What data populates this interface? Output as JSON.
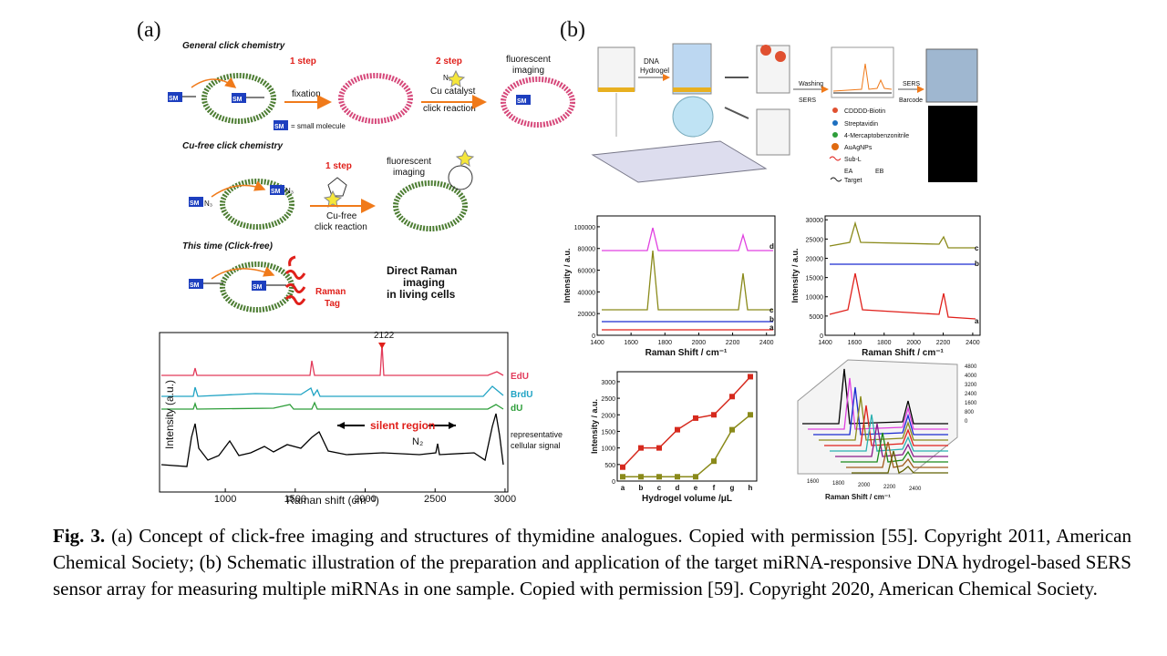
{
  "figure": {
    "panel_a": {
      "label": "(a)",
      "general": {
        "title": "General click chemistry",
        "step1": "1 step",
        "step2": "2 step",
        "reagent": "N₃",
        "catalyst": "Cu catalyst",
        "reaction": "click reaction",
        "fixation": "fixation",
        "imaging": [
          "fluorescent",
          "imaging"
        ],
        "sm": "SM",
        "sm_note": "= small molecule"
      },
      "cufree": {
        "title": "Cu-free click chemistry",
        "step1": "1 step",
        "imaging": [
          "fluorescent",
          "imaging"
        ],
        "reaction": [
          "Cu-free",
          "click reaction"
        ],
        "azide": "N₃"
      },
      "clickfree": {
        "title": "This time (Click-free)",
        "tag": [
          "Raman",
          "Tag"
        ],
        "caption": [
          "Direct Raman",
          "imaging",
          "in living cells"
        ]
      },
      "spectrum": {
        "peak": "2122",
        "series": [
          "EdU",
          "BrdU",
          "dU"
        ],
        "region": "silent region",
        "n2": "N₂",
        "cell": [
          "representative",
          "cellular signal"
        ],
        "ylabel": "Intensity (a.u.)",
        "xlabel": "Raman shift (cm⁻¹)",
        "xlim": [
          530,
          3020
        ],
        "xticks": [
          1000,
          1500,
          2000,
          2500,
          3000
        ]
      }
    },
    "panel_b": {
      "label": "(b)",
      "scheme": {
        "hydrogel": [
          "DNA",
          "Hydrogel"
        ],
        "washing": [
          "Washing",
          "SERS"
        ],
        "barcode": [
          "SERS",
          "Barcode"
        ],
        "legend": [
          "CDDDD-Biotin",
          "Streptavidin",
          "4-Mercaptobenzonitrile",
          "AuAgNPs",
          "Sub-L",
          "EA",
          "EB",
          "Target"
        ]
      },
      "plot1": {
        "ylabel": "Intensity / a.u.",
        "xlabel": "Raman Shift / cm⁻¹",
        "xlim": [
          1400,
          2450
        ],
        "ylim": [
          0,
          110000
        ],
        "xticks": [
          1400,
          1600,
          1800,
          2000,
          2200,
          2400
        ],
        "yticks": [
          0,
          20000,
          40000,
          60000,
          80000,
          100000
        ],
        "curves": [
          "d",
          "c",
          "b",
          "a"
        ]
      },
      "plot2": {
        "ylabel": "Intensity / a.u.",
        "xlabel": "Raman Shift / cm⁻¹",
        "xlim": [
          1400,
          2450
        ],
        "ylim": [
          0,
          31000
        ],
        "xticks": [
          1400,
          1600,
          1800,
          2000,
          2200,
          2400
        ],
        "yticks": [
          0,
          5000,
          10000,
          15000,
          20000,
          25000,
          30000
        ],
        "curves": [
          "c",
          "b",
          "a"
        ]
      },
      "plot3": {
        "ylabel": "Intensity / a.u.",
        "xlabel": "Hydrogel volume /μL",
        "categories": [
          "a",
          "b",
          "c",
          "d",
          "e",
          "f",
          "g",
          "h"
        ],
        "ylim": [
          0,
          3300
        ],
        "yticks": [
          0,
          500,
          1000,
          1500,
          2000,
          2500,
          3000
        ],
        "series": [
          {
            "color": "#d62a1e",
            "values": [
              420,
              1000,
              1000,
              1550,
              1900,
              2000,
              2550,
              3150
            ]
          },
          {
            "color": "#8a8a1a",
            "values": [
              130,
              130,
              130,
              130,
              130,
              600,
              1550,
              2000
            ]
          }
        ]
      },
      "plot4": {
        "xlabel": "Raman Shift / cm⁻¹",
        "xticks": [
          1600,
          1800,
          2000,
          2200,
          2400
        ],
        "zticks": [
          0,
          800,
          1600,
          2400,
          3200,
          4000,
          4800
        ]
      }
    }
  },
  "caption": {
    "label": "Fig. 3.",
    "text": "(a) Concept of click-free imaging and structures of thymidine analogues. Copied with permission [55]. Copyright 2011, American Chemical Society; (b) Schematic illustration of the preparation and application of the target miRNA-responsive DNA hydrogel-based SERS sensor array for measuring multiple miRNAs in one sample. Copied with permission [59]. Copyright 2020, American Chemical Society."
  }
}
